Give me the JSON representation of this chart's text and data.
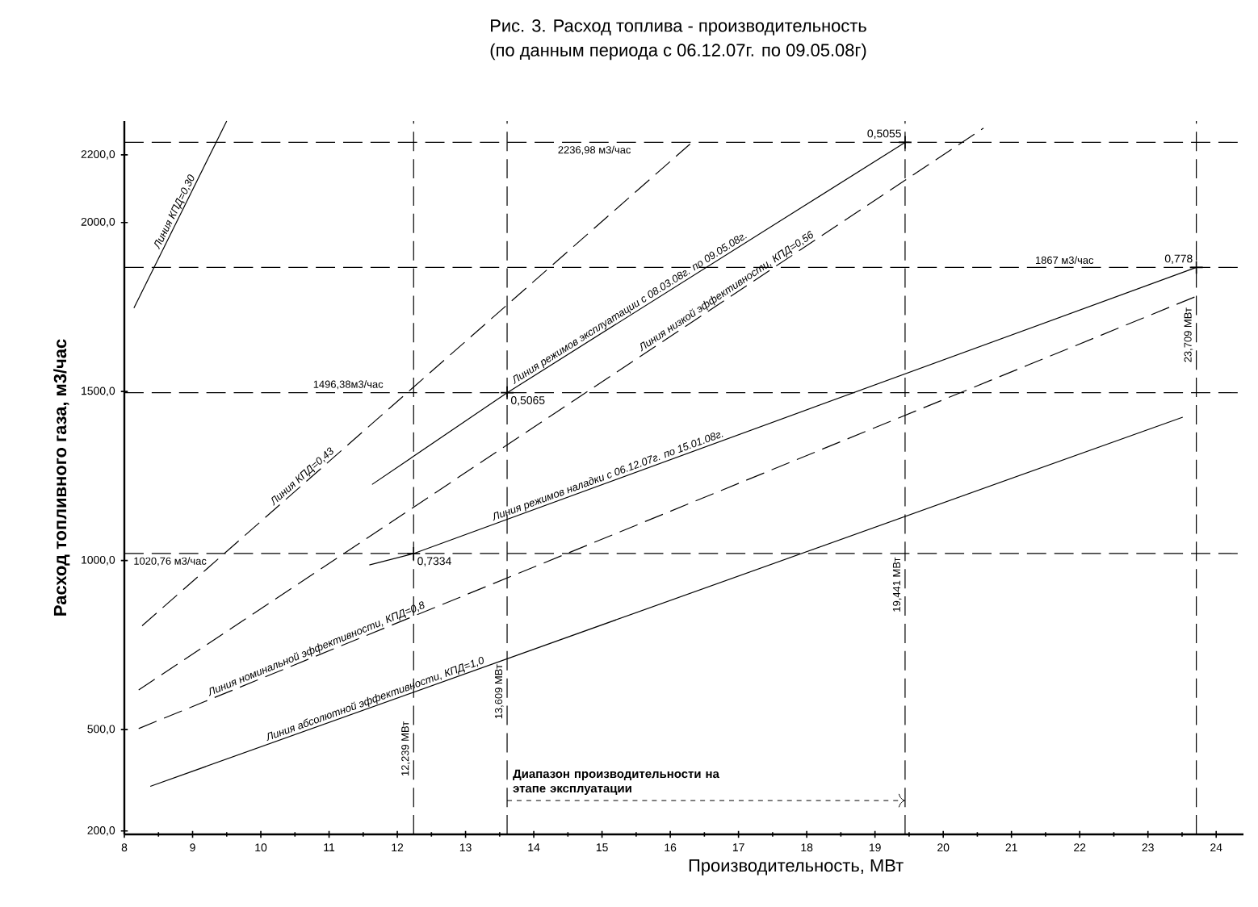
{
  "chart_data": {
    "type": "line",
    "title": "Рис. 3. Расход топлива - производительность",
    "subtitle": "(по данным периода с 06.12.07г. по 09.05.08г)",
    "xlabel": "Производительность, МВт",
    "ylabel": "Расход топливного газа, м3/час",
    "xlim": [
      8,
      24.4
    ],
    "ylim": [
      190,
      2300
    ],
    "xticks": [
      8,
      9,
      10,
      11,
      12,
      13,
      14,
      15,
      16,
      17,
      18,
      19,
      20,
      21,
      22,
      23,
      24
    ],
    "yticks": [
      {
        "value": 200,
        "label": "200,0"
      },
      {
        "value": 500,
        "label": "500,0"
      },
      {
        "value": 1000,
        "label": "1000,0"
      },
      {
        "value": 1500,
        "label": "1500,0"
      },
      {
        "value": 2000,
        "label": "2000,0"
      },
      {
        "value": 2200,
        "label": "2200,0"
      }
    ],
    "series": [
      {
        "name": "Линия КПД=0,30",
        "color": "#000000",
        "line_style": "solid",
        "x": [
          8.14,
          9.5
        ],
        "values": [
          1747,
          2300
        ]
      },
      {
        "name": "Линия КПД=0,43",
        "color": "#000000",
        "line_style": "dashed",
        "x": [
          8.26,
          16.29
        ],
        "values": [
          807,
          2232
        ]
      },
      {
        "name": "Линия режимов эксплуатации с 08.03.08г. по 09.05.08г.",
        "color": "#000000",
        "line_style": "solid",
        "x": [
          11.63,
          13.609,
          19.441
        ],
        "values": [
          1225,
          1496.38,
          2236.98
        ]
      },
      {
        "name": "Линия низкой эффективности, КПД=0,56",
        "color": "#000000",
        "line_style": "dashed",
        "x": [
          8.21,
          20.59
        ],
        "values": [
          617,
          2279
        ]
      },
      {
        "name": "Линия режимов наладки с 06.12.07г. по 15.01.08г.",
        "color": "#000000",
        "line_style": "solid",
        "x": [
          11.59,
          12.239,
          23.709
        ],
        "values": [
          987,
          1020.76,
          1867
        ]
      },
      {
        "name": "Линия номинальной эффективности, КПД=0,8",
        "color": "#000000",
        "line_style": "dashed",
        "x": [
          8.21,
          23.75
        ],
        "values": [
          503,
          1785
        ]
      },
      {
        "name": "Линия абсолютной эффективности, КПД=1,0",
        "color": "#000000",
        "line_style": "solid",
        "x": [
          8.38,
          23.51
        ],
        "values": [
          332,
          1424
        ]
      },
      {
        "type": "scatter",
        "marker": "cross",
        "color": "#000000",
        "x": [
          12.239,
          13.609,
          19.441,
          23.709
        ],
        "values": [
          1020.76,
          1496.38,
          2236.98,
          1867
        ]
      }
    ],
    "ref_lines": [
      {
        "axis": "x",
        "value": 12.239,
        "label": "12,239 МВт",
        "line_style": "dashed"
      },
      {
        "axis": "x",
        "value": 13.609,
        "label": "13,609 МВт",
        "line_style": "dashed"
      },
      {
        "axis": "x",
        "value": 19.441,
        "label": "19,441 МВт",
        "line_style": "dashed"
      },
      {
        "axis": "x",
        "value": 23.709,
        "label": "23,709 МВт",
        "line_style": "dashed"
      },
      {
        "axis": "y",
        "value": 1020.76,
        "label": "1020,76 м3/час",
        "line_style": "dashed"
      },
      {
        "axis": "y",
        "value": 1496.38,
        "label": "1496,38м3/час",
        "line_style": "dashed"
      },
      {
        "axis": "y",
        "value": 1867,
        "label": "1867 м3/час",
        "line_style": "dashed"
      },
      {
        "axis": "y",
        "value": 2236.98,
        "label": "2236,98 м3/час",
        "line_style": "dashed"
      }
    ],
    "annotations": [
      {
        "text": "0,7334",
        "x": 12.239,
        "y": 1020.76
      },
      {
        "text": "0,5065",
        "x": 13.609,
        "y": 1496.38
      },
      {
        "text": "0,5055",
        "x": 19.441,
        "y": 2236.98
      },
      {
        "text": "0,778",
        "x": 23.709,
        "y": 1867
      },
      {
        "text": "Диапазон производительности на этапе эксплуатации",
        "x": 13.609,
        "y": 290
      }
    ]
  }
}
